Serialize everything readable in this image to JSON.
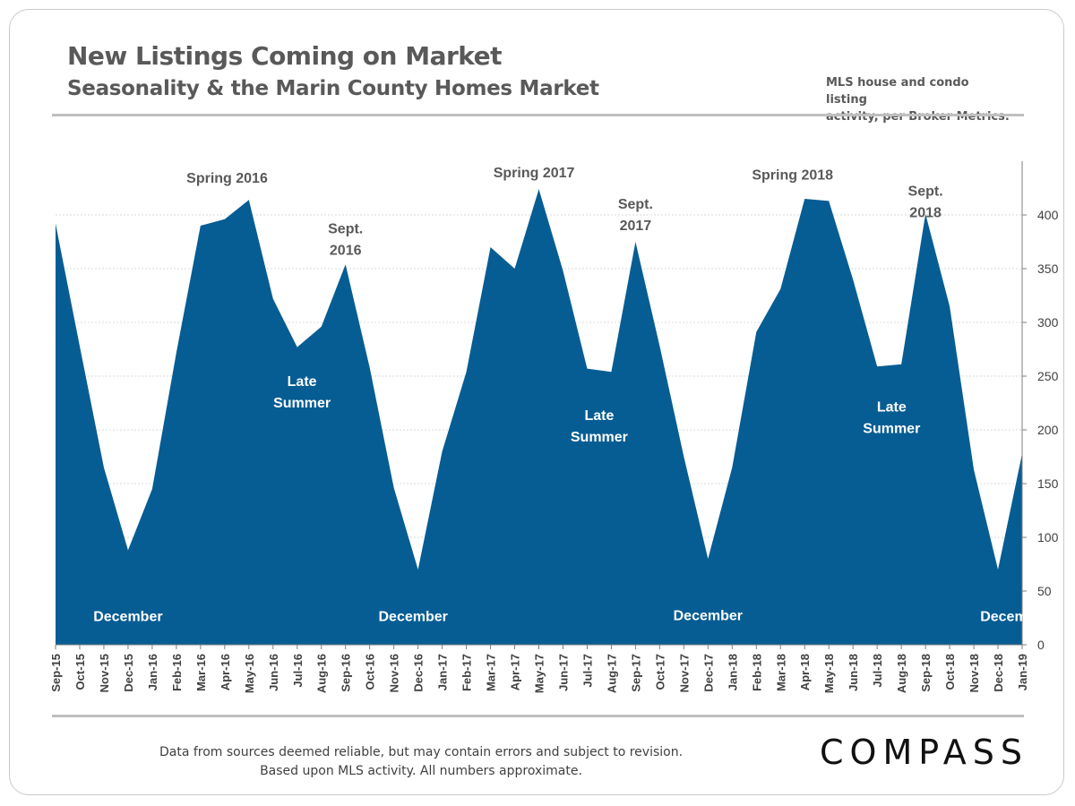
{
  "header": {
    "title": "New Listings Coming on Market",
    "subtitle": "Seasonality & the Marin County Homes Market",
    "note_line1": "MLS house and condo listing",
    "note_line2": "activity, per Broker Metrics."
  },
  "footer": {
    "line1": "Data from sources deemed reliable, but may contain errors and subject to revision.",
    "line2": "Based upon MLS activity. All numbers approximate.",
    "brand": "COMPASS"
  },
  "colors": {
    "area": "#065D93",
    "axis_text": "#404040",
    "annotation_dark": "#595959",
    "annotation_light": "#ffffff",
    "grid": "#d9d9d9",
    "rule": "#bfbfbf"
  },
  "chart_data": {
    "type": "area",
    "x": [
      "Sep-15",
      "Oct-15",
      "Nov-15",
      "Dec-15",
      "Jan-16",
      "Feb-16",
      "Mar-16",
      "Apr-16",
      "May-16",
      "Jun-16",
      "Jul-16",
      "Aug-16",
      "Sep-16",
      "Oct-16",
      "Nov-16",
      "Dec-16",
      "Jan-17",
      "Feb-17",
      "Mar-17",
      "Apr-17",
      "May-17",
      "Jun-17",
      "Jul-17",
      "Aug-17",
      "Sep-17",
      "Oct-17",
      "Nov-17",
      "Dec-17",
      "Jan-18",
      "Feb-18",
      "Mar-18",
      "Apr-18",
      "May-18",
      "Jun-18",
      "Jul-18",
      "Aug-18",
      "Sep-18",
      "Oct-18",
      "Nov-18",
      "Dec-18",
      "Jan-19"
    ],
    "series": [
      {
        "values": [
          392,
          278,
          165,
          88,
          145,
          272,
          390,
          396,
          414,
          322,
          277,
          296,
          354,
          258,
          146,
          70,
          180,
          254,
          370,
          350,
          424,
          348,
          257,
          254,
          375,
          278,
          175,
          80,
          165,
          291,
          331,
          415,
          413,
          340,
          259,
          261,
          401,
          315,
          163,
          70,
          178
        ]
      }
    ],
    "ylim": [
      0,
      450
    ],
    "yticks": [
      0,
      50,
      100,
      150,
      200,
      250,
      300,
      350,
      400
    ],
    "y_axis_side": "right",
    "grid": true,
    "annotations": [
      {
        "lines": [
          "Spring 2016"
        ],
        "x_index": 7.1,
        "y": 430,
        "style": "dark"
      },
      {
        "lines": [
          "Sept.",
          "2016"
        ],
        "x_index": 12,
        "y": 383,
        "style": "dark"
      },
      {
        "lines": [
          "Late",
          "Summer"
        ],
        "x_index": 10.2,
        "y": 241,
        "style": "light"
      },
      {
        "lines": [
          "December"
        ],
        "x_index": 3,
        "y": 22,
        "style": "light"
      },
      {
        "lines": [
          "Spring 2017"
        ],
        "x_index": 19.8,
        "y": 435,
        "style": "dark"
      },
      {
        "lines": [
          "Sept.",
          "2017"
        ],
        "x_index": 24,
        "y": 406,
        "style": "dark"
      },
      {
        "lines": [
          "Late",
          "Summer"
        ],
        "x_index": 22.5,
        "y": 209,
        "style": "light"
      },
      {
        "lines": [
          "December"
        ],
        "x_index": 14.8,
        "y": 22,
        "style": "light"
      },
      {
        "lines": [
          "Spring 2018"
        ],
        "x_index": 30.5,
        "y": 433,
        "style": "dark"
      },
      {
        "lines": [
          "Sept.",
          "2018"
        ],
        "x_index": 36,
        "y": 418,
        "style": "dark"
      },
      {
        "lines": [
          "Late",
          "Summer"
        ],
        "x_index": 34.6,
        "y": 217,
        "style": "light"
      },
      {
        "lines": [
          "December"
        ],
        "x_index": 27,
        "y": 23,
        "style": "light"
      },
      {
        "lines": [
          "December"
        ],
        "x_index": 39.7,
        "y": 22,
        "style": "light"
      }
    ]
  }
}
